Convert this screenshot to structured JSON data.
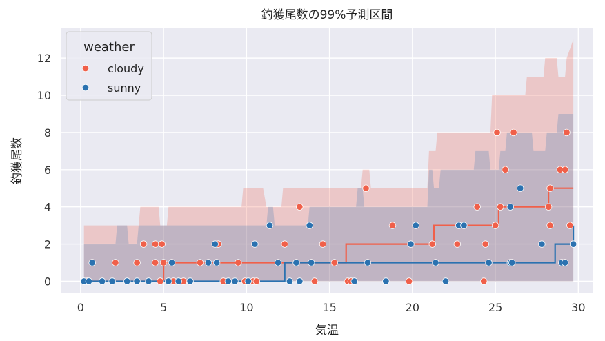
{
  "chart_data": {
    "type": "scatter",
    "title": "釣獲尾数の99%予測区間",
    "xlabel": "気温",
    "ylabel": "釣獲尾数",
    "xlim": [
      -1.2,
      30.9
    ],
    "ylim": [
      -0.65,
      13.6
    ],
    "xticks": [
      0,
      5,
      10,
      15,
      20,
      25,
      30
    ],
    "yticks": [
      0,
      2,
      4,
      6,
      8,
      10,
      12
    ],
    "grid": true,
    "background": "#eaeaf2",
    "legend": {
      "title": "weather",
      "position": "top-left",
      "entries": [
        "cloudy",
        "sunny"
      ]
    },
    "series": [
      {
        "name": "cloudy",
        "color": "#f0604a",
        "points": [
          [
            0.2,
            0
          ],
          [
            0.4,
            0
          ],
          [
            2.1,
            1
          ],
          [
            3.4,
            1
          ],
          [
            3.8,
            2
          ],
          [
            4.5,
            1
          ],
          [
            4.5,
            2
          ],
          [
            4.8,
            0
          ],
          [
            4.9,
            2
          ],
          [
            5.0,
            1
          ],
          [
            5.6,
            0
          ],
          [
            6.2,
            0
          ],
          [
            7.2,
            1
          ],
          [
            8.3,
            2
          ],
          [
            8.6,
            0
          ],
          [
            9.5,
            1
          ],
          [
            9.9,
            0
          ],
          [
            10.4,
            0
          ],
          [
            10.6,
            0
          ],
          [
            12.3,
            2
          ],
          [
            13.2,
            4
          ],
          [
            14.1,
            0
          ],
          [
            14.6,
            2
          ],
          [
            15.3,
            1
          ],
          [
            16.1,
            0
          ],
          [
            16.3,
            0
          ],
          [
            17.2,
            5
          ],
          [
            18.8,
            3
          ],
          [
            19.8,
            0
          ],
          [
            21.2,
            2
          ],
          [
            22.7,
            2
          ],
          [
            23.9,
            4
          ],
          [
            24.3,
            0
          ],
          [
            24.4,
            2
          ],
          [
            25.0,
            3
          ],
          [
            25.1,
            8
          ],
          [
            25.3,
            4
          ],
          [
            25.6,
            6
          ],
          [
            26.1,
            8
          ],
          [
            28.2,
            4
          ],
          [
            28.3,
            5
          ],
          [
            28.3,
            3
          ],
          [
            28.9,
            6
          ],
          [
            29.2,
            6
          ],
          [
            29.3,
            8
          ],
          [
            29.5,
            3
          ]
        ],
        "median_x": [
          0.2,
          4.9,
          5.0,
          16.0,
          21.3,
          25.2,
          28.2,
          29.7
        ],
        "median_y": [
          0,
          0,
          1,
          2,
          3,
          4,
          5,
          5
        ],
        "upper_x": [
          0.2,
          3.5,
          3.6,
          4.7,
          4.8,
          5.2,
          5.3,
          9.7,
          9.8,
          11.0,
          11.2,
          12.1,
          12.2,
          16.9,
          17.0,
          17.4,
          17.5,
          20.9,
          21.0,
          21.4,
          21.5,
          24.7,
          24.8,
          26.8,
          26.9,
          27.9,
          28.0,
          28.7,
          28.8,
          29.2,
          29.3,
          29.7
        ],
        "upper_y": [
          3,
          3,
          4,
          4,
          3,
          3,
          4,
          4,
          5,
          5,
          4,
          4,
          5,
          5,
          6,
          6,
          5,
          5,
          7,
          7,
          8,
          8,
          10,
          10,
          11,
          11,
          12,
          12,
          11,
          11,
          12,
          13
        ],
        "lower_y": 0
      },
      {
        "name": "sunny",
        "color": "#2b72b0",
        "points": [
          [
            0.2,
            0
          ],
          [
            0.5,
            0
          ],
          [
            0.7,
            1
          ],
          [
            1.3,
            0
          ],
          [
            1.9,
            0
          ],
          [
            2.8,
            0
          ],
          [
            3.4,
            0
          ],
          [
            4.1,
            0
          ],
          [
            5.3,
            0
          ],
          [
            5.5,
            1
          ],
          [
            5.9,
            0
          ],
          [
            6.6,
            0
          ],
          [
            7.7,
            1
          ],
          [
            8.1,
            2
          ],
          [
            8.2,
            1
          ],
          [
            8.9,
            0
          ],
          [
            9.3,
            0
          ],
          [
            10.1,
            0
          ],
          [
            10.5,
            2
          ],
          [
            11.4,
            3
          ],
          [
            11.9,
            1
          ],
          [
            12.6,
            0
          ],
          [
            13.2,
            0
          ],
          [
            13.0,
            1
          ],
          [
            13.8,
            3
          ],
          [
            13.9,
            1
          ],
          [
            16.5,
            0
          ],
          [
            17.3,
            1
          ],
          [
            18.4,
            0
          ],
          [
            19.9,
            2
          ],
          [
            20.2,
            3
          ],
          [
            21.4,
            1
          ],
          [
            22.0,
            0
          ],
          [
            22.8,
            3
          ],
          [
            23.1,
            3
          ],
          [
            24.6,
            1
          ],
          [
            25.9,
            4
          ],
          [
            25.9,
            1
          ],
          [
            26.0,
            1
          ],
          [
            26.5,
            5
          ],
          [
            27.8,
            2
          ],
          [
            29.0,
            1
          ],
          [
            29.2,
            1
          ],
          [
            29.7,
            2
          ]
        ],
        "median_x": [
          0.2,
          12.2,
          12.3,
          23.1,
          28.6,
          29.7
        ],
        "median_y": [
          0,
          0,
          1,
          1,
          2,
          3
        ],
        "upper_x": [
          0.2,
          2.1,
          2.2,
          2.8,
          2.9,
          3.4,
          3.5,
          11.2,
          11.3,
          11.6,
          11.7,
          13.7,
          13.8,
          16.6,
          16.7,
          17.0,
          17.1,
          20.9,
          21.0,
          21.2,
          21.3,
          21.6,
          21.7,
          23.7,
          23.8,
          24.6,
          24.7,
          25.2,
          25.3,
          25.6,
          25.7,
          27.2,
          27.3,
          28.0,
          28.1,
          28.7,
          28.8,
          29.7
        ],
        "upper_y": [
          2,
          2,
          3,
          3,
          2,
          2,
          3,
          3,
          4,
          4,
          3,
          3,
          4,
          4,
          5,
          5,
          4,
          4,
          6,
          6,
          5,
          5,
          6,
          6,
          7,
          7,
          6,
          6,
          7,
          7,
          8,
          8,
          7,
          7,
          8,
          8,
          9,
          9
        ],
        "lower_y": 0
      }
    ]
  }
}
